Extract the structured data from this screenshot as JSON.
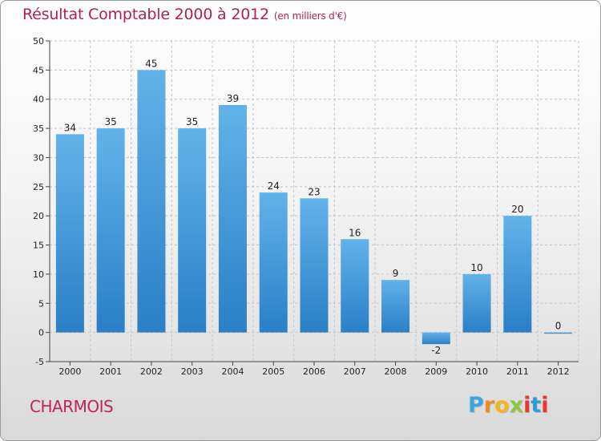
{
  "header": {
    "title": "Résultat Comptable 2000 à 2012",
    "unit": "(en milliers d'€)"
  },
  "footer": {
    "place": "CHARMOIS",
    "logo": [
      "P",
      "r",
      "o",
      "x",
      "i",
      "t",
      "i"
    ],
    "logo_colors": [
      "#3fa4dc",
      "#f08a24",
      "#f5b31c",
      "#8cc63e",
      "#e8382d",
      "#2c9ad6",
      "#e8382d"
    ]
  },
  "colors": {
    "bar_top": "#62b2ea",
    "bar_bottom": "#2a7fc6",
    "title": "#b0224e",
    "place": "#c2245a"
  },
  "chart_data": {
    "type": "bar",
    "title": "Résultat Comptable 2000 à 2012",
    "ylabel": "en milliers d'€",
    "categories": [
      "2000",
      "2001",
      "2002",
      "2003",
      "2004",
      "2005",
      "2006",
      "2007",
      "2008",
      "2009",
      "2010",
      "2011",
      "2012"
    ],
    "values": [
      34,
      35,
      45,
      35,
      39,
      24,
      23,
      16,
      9,
      -2,
      10,
      20,
      0
    ],
    "ylim": [
      -5,
      50
    ],
    "yticks": [
      -5,
      0,
      5,
      10,
      15,
      20,
      25,
      30,
      35,
      40,
      45,
      50
    ],
    "grid": true
  }
}
